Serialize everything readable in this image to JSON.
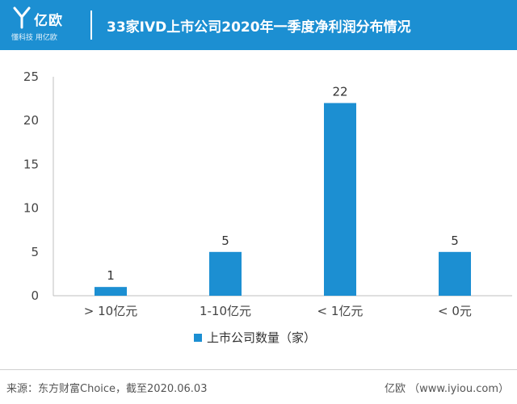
{
  "header": {
    "logo_name": "亿欧",
    "logo_tagline": "懂科技 用亿欧",
    "title": "33家IVD上市公司2020年一季度净利润分布情况"
  },
  "colors": {
    "header_bg": "#1c8fd2",
    "bar": "#1c8fd2"
  },
  "chart_data": {
    "type": "bar",
    "title": "33家IVD上市公司2020年一季度净利润分布情况",
    "xlabel": "",
    "ylabel": "",
    "categories": [
      "> 10亿元",
      "1-10亿元",
      "< 1亿元",
      "< 0元"
    ],
    "series": [
      {
        "name": "上市公司数量（家）",
        "values": [
          1,
          5,
          22,
          5
        ]
      }
    ],
    "data_labels": [
      "1",
      "5",
      "22",
      "5"
    ],
    "ylim": [
      0,
      25
    ],
    "yticks": [
      "0",
      "5",
      "10",
      "15",
      "20",
      "25"
    ],
    "grid": false,
    "legend_position": "bottom"
  },
  "footer": {
    "source": "来源：东方财富Choice，截至2020.06.03",
    "site": "亿欧 （www.iyiou.com）"
  }
}
